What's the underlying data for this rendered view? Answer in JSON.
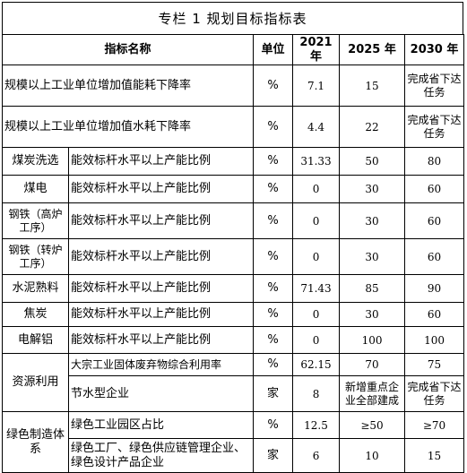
{
  "title": "专栏 1    规划目标指标表",
  "headers": {
    "name": "指标名称",
    "unit": "单位",
    "y2021": "2021 年",
    "y2025": "2025 年",
    "y2030": "2030 年"
  },
  "rows": [
    {
      "name": "规模以上工业单位增加值能耗下降率",
      "unit": "%",
      "v2021": "7.1",
      "v2025": "15",
      "v2030": "完成省下达任务"
    },
    {
      "name": "规模以上工业单位增加值水耗下降率",
      "unit": "%",
      "v2021": "4.4",
      "v2025": "22",
      "v2030": "完成省下达任务"
    },
    {
      "category": "煤炭洗选",
      "name": "能效标杆水平以上产能比例",
      "unit": "%",
      "v2021": "31.33",
      "v2025": "50",
      "v2030": "80"
    },
    {
      "category": "煤电",
      "name": "能效标杆水平以上产能比例",
      "unit": "%",
      "v2021": "0",
      "v2025": "30",
      "v2030": "60"
    },
    {
      "category": "钢铁（高炉工序）",
      "name": "能效标杆水平以上产能比例",
      "unit": "%",
      "v2021": "0",
      "v2025": "30",
      "v2030": "60"
    },
    {
      "category": "钢铁（转炉工序）",
      "name": "能效标杆水平以上产能比例",
      "unit": "%",
      "v2021": "0",
      "v2025": "30",
      "v2030": "60"
    },
    {
      "category": "水泥熟料",
      "name": "能效标杆水平以上产能比例",
      "unit": "%",
      "v2021": "71.43",
      "v2025": "85",
      "v2030": "90"
    },
    {
      "category": "焦炭",
      "name": "能效标杆水平以上产能比例",
      "unit": "%",
      "v2021": "0",
      "v2025": "30",
      "v2030": "60"
    },
    {
      "category": "电解铝",
      "name": "能效标杆水平以上产能比例",
      "unit": "%",
      "v2021": "0",
      "v2025": "100",
      "v2030": "100"
    },
    {
      "category": "资源利用",
      "name": "大宗工业固体废弃物综合利用率",
      "unit": "%",
      "v2021": "62.15",
      "v2025": "70",
      "v2030": "75"
    },
    {
      "name": "节水型企业",
      "unit": "家",
      "v2021": "8",
      "v2025": "新增重点企业全部建成",
      "v2030": "完成省下达任务"
    },
    {
      "category": "绿色制造体系",
      "name": "绿色工业园区占比",
      "unit": "%",
      "v2021": "12.5",
      "v2025": "≥50",
      "v2030": "≥70"
    },
    {
      "name": "绿色工厂、绿色供应链管理企业、绿色设计产品企业",
      "unit": "家",
      "v2021": "6",
      "v2025": "10",
      "v2030": "15"
    }
  ]
}
